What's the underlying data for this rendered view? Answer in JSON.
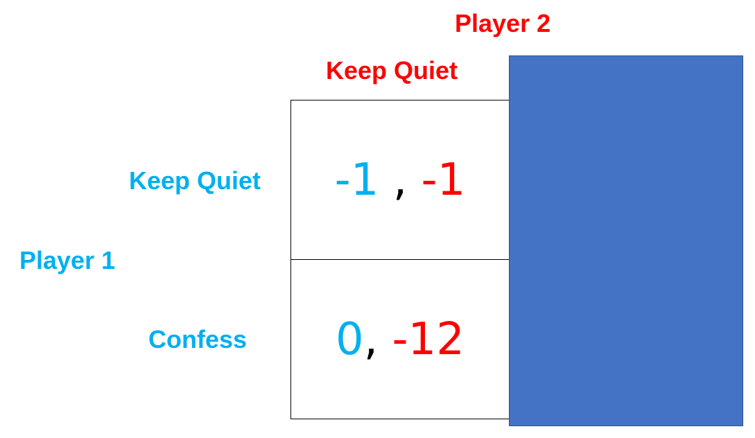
{
  "colors": {
    "player1": "#00b0f0",
    "player2": "#ff0000",
    "separator": "#000000",
    "cover": "#4472c4"
  },
  "player2": {
    "title": "Player 2",
    "strategies": [
      "Keep Quiet"
    ]
  },
  "player1": {
    "title": "Player 1",
    "strategies": [
      "Keep Quiet",
      "Confess"
    ]
  },
  "payoffs": [
    {
      "p1": "-1",
      "sep": " , ",
      "p2": "-1"
    },
    {
      "p1": "0",
      "sep": ", ",
      "p2": "-12"
    }
  ]
}
